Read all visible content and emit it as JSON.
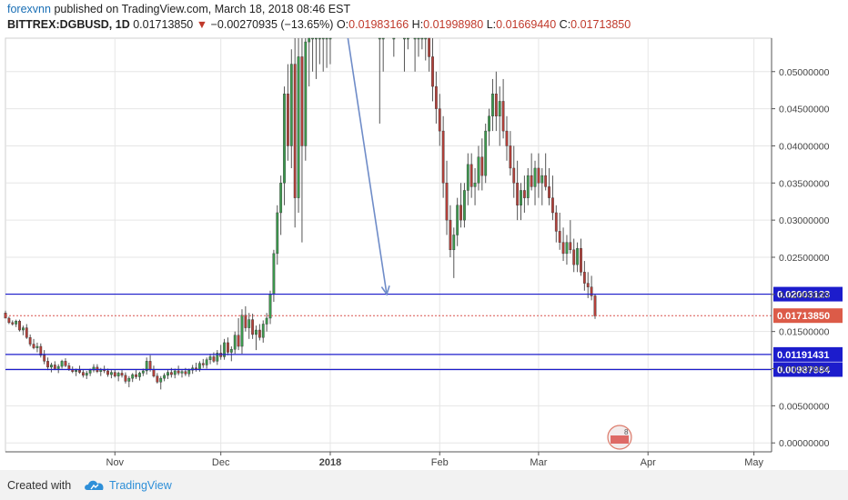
{
  "header": {
    "user": "forexvnn",
    "published": "published on TradingView.com, March 18, 2018 08:46 EST",
    "symbol": "BITTREX:DGBUSD, 1D",
    "last": "0.01713850",
    "change_arrow": "▼",
    "change": "−0.00270935 (−13.65%)",
    "o_label": "O:",
    "o_value": "0.01983166",
    "h_label": "H:",
    "h_value": "0.01998980",
    "l_label": "L:",
    "l_value": "0.01669440",
    "c_label": "C:",
    "c_value": "0.01713850"
  },
  "footer": {
    "created_with": "Created with",
    "brand": "TradingView",
    "logo_icon": "cloud-icon"
  },
  "colors": {
    "up": "#3c9a4e",
    "down": "#b3403a",
    "hline": "#1c1ccc",
    "price_line": "#d9534f",
    "arrow": "#6f8cc8",
    "grid": "#e6e6e6",
    "axis": "#555555"
  },
  "chart_data": {
    "type": "candlestick",
    "symbol": "BITTREX:DGBUSD",
    "timeframe": "1D",
    "x_tick_labels": [
      "Nov",
      "Dec",
      "2018",
      "Feb",
      "Mar",
      "Apr",
      "May"
    ],
    "x_tick_dates": [
      "2017-11-01",
      "2017-12-01",
      "2018-01-01",
      "2018-02-01",
      "2018-03-01",
      "2018-04-01",
      "2018-05-01"
    ],
    "x_range": [
      "2017-10-01",
      "2018-05-06"
    ],
    "y_tick_labels": [
      "0.00000000",
      "0.00500000",
      "0.01000000",
      "0.01500000",
      "0.02000000",
      "0.02500000",
      "0.03000000",
      "0.03500000",
      "0.04000000",
      "0.04500000",
      "0.05000000"
    ],
    "y_ticks": [
      0,
      0.005,
      0.01,
      0.015,
      0.02,
      0.025,
      0.03,
      0.035,
      0.04,
      0.045,
      0.05
    ],
    "ylim": [
      -0.0012,
      0.0545
    ],
    "grid": true,
    "horizontal_lines": [
      {
        "label": "0.02003123",
        "value": 0.02003123
      },
      {
        "label": "0.01191431",
        "value": 0.01191431
      },
      {
        "label": "0.00987984",
        "value": 0.00987984
      }
    ],
    "last_price": {
      "label": "0.01713850",
      "value": 0.0171385
    },
    "arrow": {
      "from": [
        "2018-01-06",
        0.0545
      ],
      "to": [
        "2018-01-17",
        0.02
      ]
    },
    "candles": [
      [
        "2017-10-01",
        0.0175,
        0.0178,
        0.017,
        0.0168
      ],
      [
        "2017-10-02",
        0.0168,
        0.017,
        0.016,
        0.0162
      ],
      [
        "2017-10-03",
        0.0162,
        0.0165,
        0.0158,
        0.016
      ],
      [
        "2017-10-04",
        0.016,
        0.0166,
        0.0156,
        0.0164
      ],
      [
        "2017-10-05",
        0.0164,
        0.0166,
        0.015,
        0.0152
      ],
      [
        "2017-10-06",
        0.0152,
        0.0158,
        0.0145,
        0.0155
      ],
      [
        "2017-10-07",
        0.0155,
        0.016,
        0.014,
        0.0142
      ],
      [
        "2017-10-08",
        0.0142,
        0.0146,
        0.013,
        0.0133
      ],
      [
        "2017-10-09",
        0.0133,
        0.014,
        0.0126,
        0.0128
      ],
      [
        "2017-10-10",
        0.0128,
        0.0135,
        0.0122,
        0.013
      ],
      [
        "2017-10-11",
        0.013,
        0.0134,
        0.0115,
        0.0118
      ],
      [
        "2017-10-12",
        0.0118,
        0.0125,
        0.0106,
        0.011
      ],
      [
        "2017-10-13",
        0.011,
        0.0115,
        0.0098,
        0.0102
      ],
      [
        "2017-10-14",
        0.0102,
        0.0108,
        0.0095,
        0.0105
      ],
      [
        "2017-10-15",
        0.0105,
        0.011,
        0.0098,
        0.01
      ],
      [
        "2017-10-16",
        0.01,
        0.0106,
        0.0094,
        0.0103
      ],
      [
        "2017-10-17",
        0.0103,
        0.0112,
        0.01,
        0.011
      ],
      [
        "2017-10-18",
        0.011,
        0.0114,
        0.0102,
        0.0104
      ],
      [
        "2017-10-19",
        0.0104,
        0.0108,
        0.0097,
        0.0099
      ],
      [
        "2017-10-20",
        0.0099,
        0.0103,
        0.0094,
        0.0096
      ],
      [
        "2017-10-21",
        0.0096,
        0.01,
        0.009,
        0.0098
      ],
      [
        "2017-10-22",
        0.0098,
        0.0104,
        0.0093,
        0.0095
      ],
      [
        "2017-10-23",
        0.0095,
        0.0099,
        0.0088,
        0.0091
      ],
      [
        "2017-10-24",
        0.0091,
        0.0097,
        0.0086,
        0.0094
      ],
      [
        "2017-10-25",
        0.0094,
        0.01,
        0.009,
        0.0098
      ],
      [
        "2017-10-26",
        0.0098,
        0.0106,
        0.0095,
        0.0102
      ],
      [
        "2017-10-27",
        0.0102,
        0.0106,
        0.0094,
        0.0096
      ],
      [
        "2017-10-28",
        0.0096,
        0.0101,
        0.009,
        0.0099
      ],
      [
        "2017-10-29",
        0.0099,
        0.0104,
        0.0094,
        0.0097
      ],
      [
        "2017-10-30",
        0.0097,
        0.01,
        0.0089,
        0.0092
      ],
      [
        "2017-10-31",
        0.0092,
        0.0098,
        0.0087,
        0.0095
      ],
      [
        "2017-11-01",
        0.0095,
        0.0099,
        0.0088,
        0.009
      ],
      [
        "2017-11-02",
        0.009,
        0.0096,
        0.0083,
        0.0094
      ],
      [
        "2017-11-03",
        0.0094,
        0.0098,
        0.0088,
        0.0091
      ],
      [
        "2017-11-04",
        0.0091,
        0.0095,
        0.008,
        0.0083
      ],
      [
        "2017-11-05",
        0.0083,
        0.009,
        0.0075,
        0.0087
      ],
      [
        "2017-11-06",
        0.0087,
        0.0094,
        0.0082,
        0.0092
      ],
      [
        "2017-11-07",
        0.0092,
        0.0098,
        0.0086,
        0.0089
      ],
      [
        "2017-11-08",
        0.0089,
        0.0096,
        0.0084,
        0.0094
      ],
      [
        "2017-11-09",
        0.0094,
        0.01,
        0.009,
        0.0097
      ],
      [
        "2017-11-10",
        0.0097,
        0.0115,
        0.0092,
        0.011
      ],
      [
        "2017-11-11",
        0.011,
        0.0118,
        0.0096,
        0.0099
      ],
      [
        "2017-11-12",
        0.0099,
        0.0104,
        0.0088,
        0.009
      ],
      [
        "2017-11-13",
        0.009,
        0.0094,
        0.008,
        0.0082
      ],
      [
        "2017-11-14",
        0.0082,
        0.009,
        0.0072,
        0.0087
      ],
      [
        "2017-11-15",
        0.0087,
        0.0094,
        0.0083,
        0.0091
      ],
      [
        "2017-11-16",
        0.0091,
        0.0098,
        0.0086,
        0.0095
      ],
      [
        "2017-11-17",
        0.0095,
        0.0101,
        0.0088,
        0.0092
      ],
      [
        "2017-11-18",
        0.0092,
        0.01,
        0.0087,
        0.0097
      ],
      [
        "2017-11-19",
        0.0097,
        0.0104,
        0.0091,
        0.0094
      ],
      [
        "2017-11-20",
        0.0094,
        0.0099,
        0.0088,
        0.0096
      ],
      [
        "2017-11-21",
        0.0096,
        0.0101,
        0.009,
        0.0093
      ],
      [
        "2017-11-22",
        0.0093,
        0.01,
        0.0089,
        0.0098
      ],
      [
        "2017-11-23",
        0.0098,
        0.0105,
        0.0093,
        0.0101
      ],
      [
        "2017-11-24",
        0.0101,
        0.0108,
        0.0096,
        0.0099
      ],
      [
        "2017-11-25",
        0.0099,
        0.011,
        0.0096,
        0.0107
      ],
      [
        "2017-11-26",
        0.0107,
        0.0113,
        0.0101,
        0.0105
      ],
      [
        "2017-11-27",
        0.0105,
        0.0115,
        0.01,
        0.0112
      ],
      [
        "2017-11-28",
        0.0112,
        0.012,
        0.0106,
        0.0116
      ],
      [
        "2017-11-29",
        0.0116,
        0.0122,
        0.0108,
        0.011
      ],
      [
        "2017-11-30",
        0.011,
        0.0125,
        0.0105,
        0.0121
      ],
      [
        "2017-12-01",
        0.0121,
        0.0132,
        0.0112,
        0.0116
      ],
      [
        "2017-12-02",
        0.0116,
        0.014,
        0.0112,
        0.0135
      ],
      [
        "2017-12-03",
        0.0135,
        0.0142,
        0.0118,
        0.0122
      ],
      [
        "2017-12-04",
        0.0122,
        0.013,
        0.011,
        0.0126
      ],
      [
        "2017-12-05",
        0.0126,
        0.015,
        0.012,
        0.0145
      ],
      [
        "2017-12-06",
        0.0145,
        0.0168,
        0.0125,
        0.013
      ],
      [
        "2017-12-07",
        0.013,
        0.018,
        0.012,
        0.0172
      ],
      [
        "2017-12-08",
        0.0172,
        0.0184,
        0.015,
        0.0155
      ],
      [
        "2017-12-09",
        0.0155,
        0.0175,
        0.014,
        0.0166
      ],
      [
        "2017-12-10",
        0.0166,
        0.0174,
        0.014,
        0.0146
      ],
      [
        "2017-12-11",
        0.0146,
        0.0158,
        0.0125,
        0.0152
      ],
      [
        "2017-12-12",
        0.0152,
        0.016,
        0.0138,
        0.0142
      ],
      [
        "2017-12-13",
        0.0142,
        0.0165,
        0.0135,
        0.016
      ],
      [
        "2017-12-14",
        0.016,
        0.0175,
        0.015,
        0.0168
      ],
      [
        "2017-12-15",
        0.0168,
        0.0205,
        0.016,
        0.02
      ],
      [
        "2017-12-16",
        0.02,
        0.026,
        0.019,
        0.0255
      ],
      [
        "2017-12-17",
        0.0255,
        0.032,
        0.024,
        0.031
      ],
      [
        "2017-12-18",
        0.031,
        0.036,
        0.028,
        0.035
      ],
      [
        "2017-12-19",
        0.035,
        0.048,
        0.032,
        0.047
      ],
      [
        "2017-12-20",
        0.047,
        0.051,
        0.038,
        0.04
      ],
      [
        "2017-12-21",
        0.04,
        0.053,
        0.037,
        0.051
      ],
      [
        "2017-12-22",
        0.051,
        0.0545,
        0.029,
        0.033
      ],
      [
        "2017-12-23",
        0.033,
        0.0545,
        0.031,
        0.052
      ],
      [
        "2017-12-24",
        0.052,
        0.0545,
        0.027,
        0.04
      ],
      [
        "2017-12-25",
        0.04,
        0.0545,
        0.038,
        0.054
      ],
      [
        "2017-12-26",
        0.054,
        0.0545,
        0.048,
        0.0545
      ],
      [
        "2017-12-27",
        0.0545,
        0.0545,
        0.05,
        0.0545
      ],
      [
        "2017-12-28",
        0.0545,
        0.0545,
        0.049,
        0.0545
      ],
      [
        "2017-12-29",
        0.0545,
        0.0545,
        0.051,
        0.0545
      ],
      [
        "2017-12-30",
        0.0545,
        0.0545,
        0.05,
        0.0545
      ],
      [
        "2017-12-31",
        0.0545,
        0.0545,
        0.0505,
        0.0545
      ],
      [
        "2018-01-01",
        0.0545,
        0.0545,
        0.051,
        0.0545
      ],
      [
        "2018-01-15",
        0.0545,
        0.0545,
        0.043,
        0.0545
      ],
      [
        "2018-01-16",
        0.0545,
        0.0545,
        0.05,
        0.0545
      ],
      [
        "2018-01-19",
        0.0545,
        0.0545,
        0.052,
        0.0545
      ],
      [
        "2018-01-22",
        0.0545,
        0.0545,
        0.05,
        0.0545
      ],
      [
        "2018-01-23",
        0.0545,
        0.0545,
        0.053,
        0.0545
      ],
      [
        "2018-01-25",
        0.0545,
        0.0545,
        0.05,
        0.0545
      ],
      [
        "2018-01-26",
        0.0545,
        0.0545,
        0.052,
        0.0545
      ],
      [
        "2018-01-27",
        0.0545,
        0.0545,
        0.053,
        0.0545
      ],
      [
        "2018-01-28",
        0.0545,
        0.0545,
        0.0515,
        0.0545
      ],
      [
        "2018-01-29",
        0.0545,
        0.0545,
        0.05,
        0.052
      ],
      [
        "2018-01-30",
        0.052,
        0.0545,
        0.046,
        0.048
      ],
      [
        "2018-01-31",
        0.048,
        0.05,
        0.043,
        0.045
      ],
      [
        "2018-02-01",
        0.045,
        0.047,
        0.04,
        0.042
      ],
      [
        "2018-02-02",
        0.042,
        0.044,
        0.033,
        0.035
      ],
      [
        "2018-02-03",
        0.035,
        0.038,
        0.028,
        0.03
      ],
      [
        "2018-02-04",
        0.03,
        0.032,
        0.025,
        0.026
      ],
      [
        "2018-02-05",
        0.026,
        0.029,
        0.0222,
        0.028
      ],
      [
        "2018-02-06",
        0.028,
        0.033,
        0.0265,
        0.032
      ],
      [
        "2018-02-07",
        0.032,
        0.035,
        0.029,
        0.03
      ],
      [
        "2018-02-08",
        0.03,
        0.035,
        0.029,
        0.034
      ],
      [
        "2018-02-09",
        0.034,
        0.039,
        0.032,
        0.0375
      ],
      [
        "2018-02-10",
        0.0375,
        0.039,
        0.033,
        0.0345
      ],
      [
        "2018-02-11",
        0.0345,
        0.037,
        0.032,
        0.035
      ],
      [
        "2018-02-12",
        0.035,
        0.04,
        0.034,
        0.0385
      ],
      [
        "2018-02-13",
        0.0385,
        0.041,
        0.034,
        0.036
      ],
      [
        "2018-02-14",
        0.036,
        0.043,
        0.035,
        0.042
      ],
      [
        "2018-02-15",
        0.042,
        0.045,
        0.04,
        0.044
      ],
      [
        "2018-02-16",
        0.044,
        0.049,
        0.042,
        0.047
      ],
      [
        "2018-02-17",
        0.047,
        0.05,
        0.042,
        0.044
      ],
      [
        "2018-02-18",
        0.044,
        0.048,
        0.04,
        0.046
      ],
      [
        "2018-02-19",
        0.046,
        0.049,
        0.041,
        0.042
      ],
      [
        "2018-02-20",
        0.042,
        0.044,
        0.038,
        0.04
      ],
      [
        "2018-02-21",
        0.04,
        0.042,
        0.036,
        0.037
      ],
      [
        "2018-02-22",
        0.037,
        0.04,
        0.033,
        0.035
      ],
      [
        "2018-02-23",
        0.035,
        0.038,
        0.03,
        0.032
      ],
      [
        "2018-02-24",
        0.032,
        0.035,
        0.03,
        0.034
      ],
      [
        "2018-02-25",
        0.034,
        0.036,
        0.031,
        0.033
      ],
      [
        "2018-02-26",
        0.033,
        0.037,
        0.032,
        0.036
      ],
      [
        "2018-02-27",
        0.036,
        0.039,
        0.034,
        0.0345
      ],
      [
        "2018-02-28",
        0.0345,
        0.038,
        0.032,
        0.037
      ],
      [
        "2018-03-01",
        0.037,
        0.039,
        0.033,
        0.035
      ],
      [
        "2018-03-02",
        0.035,
        0.037,
        0.032,
        0.036
      ],
      [
        "2018-03-03",
        0.036,
        0.039,
        0.034,
        0.0345
      ],
      [
        "2018-03-04",
        0.0345,
        0.037,
        0.032,
        0.033
      ],
      [
        "2018-03-05",
        0.033,
        0.036,
        0.03,
        0.031
      ],
      [
        "2018-03-06",
        0.031,
        0.032,
        0.027,
        0.0285
      ],
      [
        "2018-03-07",
        0.0285,
        0.031,
        0.026,
        0.027
      ],
      [
        "2018-03-08",
        0.027,
        0.029,
        0.0245,
        0.0255
      ],
      [
        "2018-03-09",
        0.0255,
        0.028,
        0.024,
        0.027
      ],
      [
        "2018-03-10",
        0.027,
        0.03,
        0.0255,
        0.026
      ],
      [
        "2018-03-11",
        0.026,
        0.0275,
        0.023,
        0.024
      ],
      [
        "2018-03-12",
        0.024,
        0.027,
        0.023,
        0.0262
      ],
      [
        "2018-03-13",
        0.0262,
        0.0275,
        0.0225,
        0.023
      ],
      [
        "2018-03-14",
        0.023,
        0.0245,
        0.0205,
        0.0215
      ],
      [
        "2018-03-15",
        0.0215,
        0.023,
        0.0195,
        0.021
      ],
      [
        "2018-03-16",
        0.021,
        0.0225,
        0.0192,
        0.0198
      ],
      [
        "2018-03-17",
        0.0198,
        0.02,
        0.0167,
        0.0171
      ]
    ]
  }
}
